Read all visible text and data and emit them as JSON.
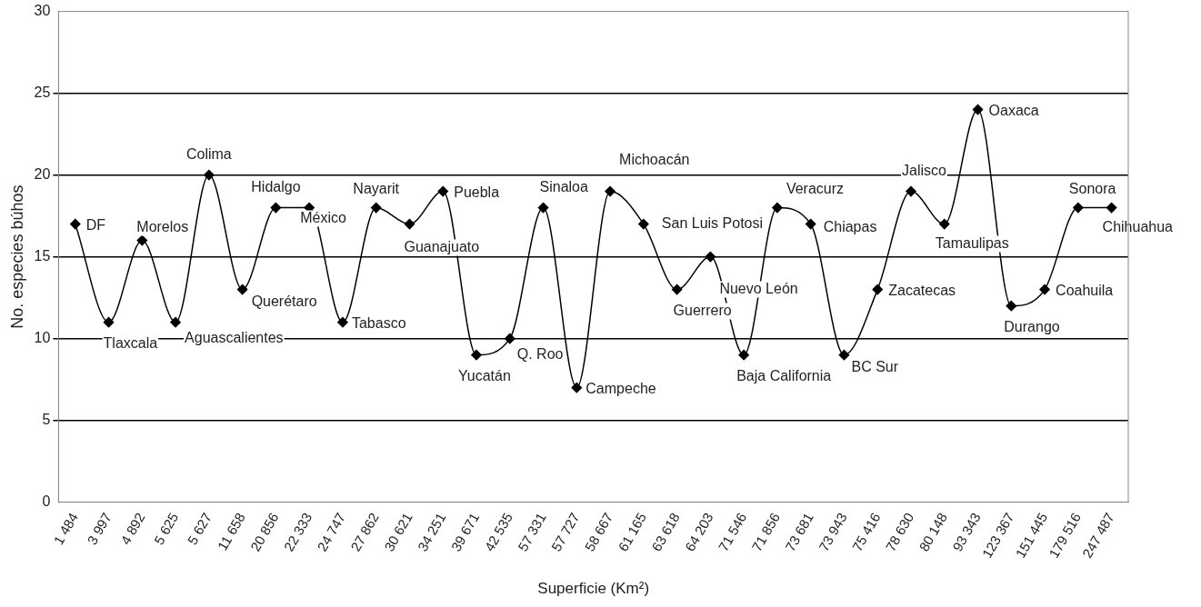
{
  "chart_data": {
    "type": "line",
    "xlabel": "Superficie (Km²)",
    "ylabel": "No. especies búhos",
    "categories": [
      "1 484",
      "3 997",
      "4 892",
      "5 625",
      "5 627",
      "11 658",
      "20 856",
      "22 333",
      "24 747",
      "27 862",
      "30 621",
      "34 251",
      "39 671",
      "42 535",
      "57 331",
      "57 727",
      "58 667",
      "61 165",
      "63 618",
      "64 203",
      "71 546",
      "71 856",
      "73 681",
      "73 943",
      "75 416",
      "78 630",
      "80 148",
      "93 343",
      "123 367",
      "151 445",
      "179 516",
      "247 487"
    ],
    "series": [
      {
        "color": "#000000",
        "values": [
          17,
          11,
          16,
          11,
          20,
          13,
          18,
          18,
          11,
          18,
          17,
          19,
          9,
          10,
          18,
          7,
          19,
          17,
          13,
          15,
          9,
          18,
          17,
          9,
          13,
          19,
          17,
          24,
          12,
          13,
          18,
          18
        ]
      }
    ],
    "ylim": [
      0,
      30
    ],
    "yticks": [
      0,
      5,
      10,
      15,
      20,
      25,
      30
    ],
    "grid": "y",
    "legend": false,
    "marker": "diamond",
    "line_style": "solid",
    "annotations": [
      {
        "text": "DF",
        "x": "1 484",
        "y": 17
      },
      {
        "text": "Tlaxcala",
        "x": "3 997",
        "y": 11
      },
      {
        "text": "Morelos",
        "x": "4 892",
        "y": 16
      },
      {
        "text": "Aguascalientes",
        "x": "5 625",
        "y": 11
      },
      {
        "text": "Colima",
        "x": "5 627",
        "y": 20
      },
      {
        "text": "Querétaro",
        "x": "11 658",
        "y": 13
      },
      {
        "text": "Hidalgo",
        "x": "20 856",
        "y": 18
      },
      {
        "text": "México",
        "x": "22 333",
        "y": 18
      },
      {
        "text": "Tabasco",
        "x": "24 747",
        "y": 11
      },
      {
        "text": "Nayarit",
        "x": "27 862",
        "y": 18
      },
      {
        "text": "Guanajuato",
        "x": "30 621",
        "y": 17
      },
      {
        "text": "Puebla",
        "x": "34 251",
        "y": 19
      },
      {
        "text": "Yucatán",
        "x": "39 671",
        "y": 9
      },
      {
        "text": "Q. Roo",
        "x": "42 535",
        "y": 10
      },
      {
        "text": "Sinaloa",
        "x": "57 331",
        "y": 18
      },
      {
        "text": "Campeche",
        "x": "57 727",
        "y": 7
      },
      {
        "text": "Michoacán",
        "x": "58 667",
        "y": 19
      },
      {
        "text": "San Luis Potosi",
        "x": "61 165",
        "y": 17
      },
      {
        "text": "Guerrero",
        "x": "63 618",
        "y": 13
      },
      {
        "text": "Nuevo León",
        "x": "64 203",
        "y": 15
      },
      {
        "text": "Baja California",
        "x": "71 546",
        "y": 9
      },
      {
        "text": "Veracurz",
        "x": "71 856",
        "y": 18
      },
      {
        "text": "Chiapas",
        "x": "73 681",
        "y": 17
      },
      {
        "text": "BC Sur",
        "x": "73 943",
        "y": 9
      },
      {
        "text": "Zacatecas",
        "x": "75 416",
        "y": 13
      },
      {
        "text": "Jalisco",
        "x": "78 630",
        "y": 19
      },
      {
        "text": "Tamaulipas",
        "x": "80 148",
        "y": 17
      },
      {
        "text": "Oaxaca",
        "x": "93 343",
        "y": 24
      },
      {
        "text": "Durango",
        "x": "123 367",
        "y": 12
      },
      {
        "text": "Coahuila",
        "x": "151 445",
        "y": 13
      },
      {
        "text": "Sonora",
        "x": "179 516",
        "y": 18
      },
      {
        "text": "Chihuahua",
        "x": "247 487",
        "y": 18
      }
    ]
  }
}
